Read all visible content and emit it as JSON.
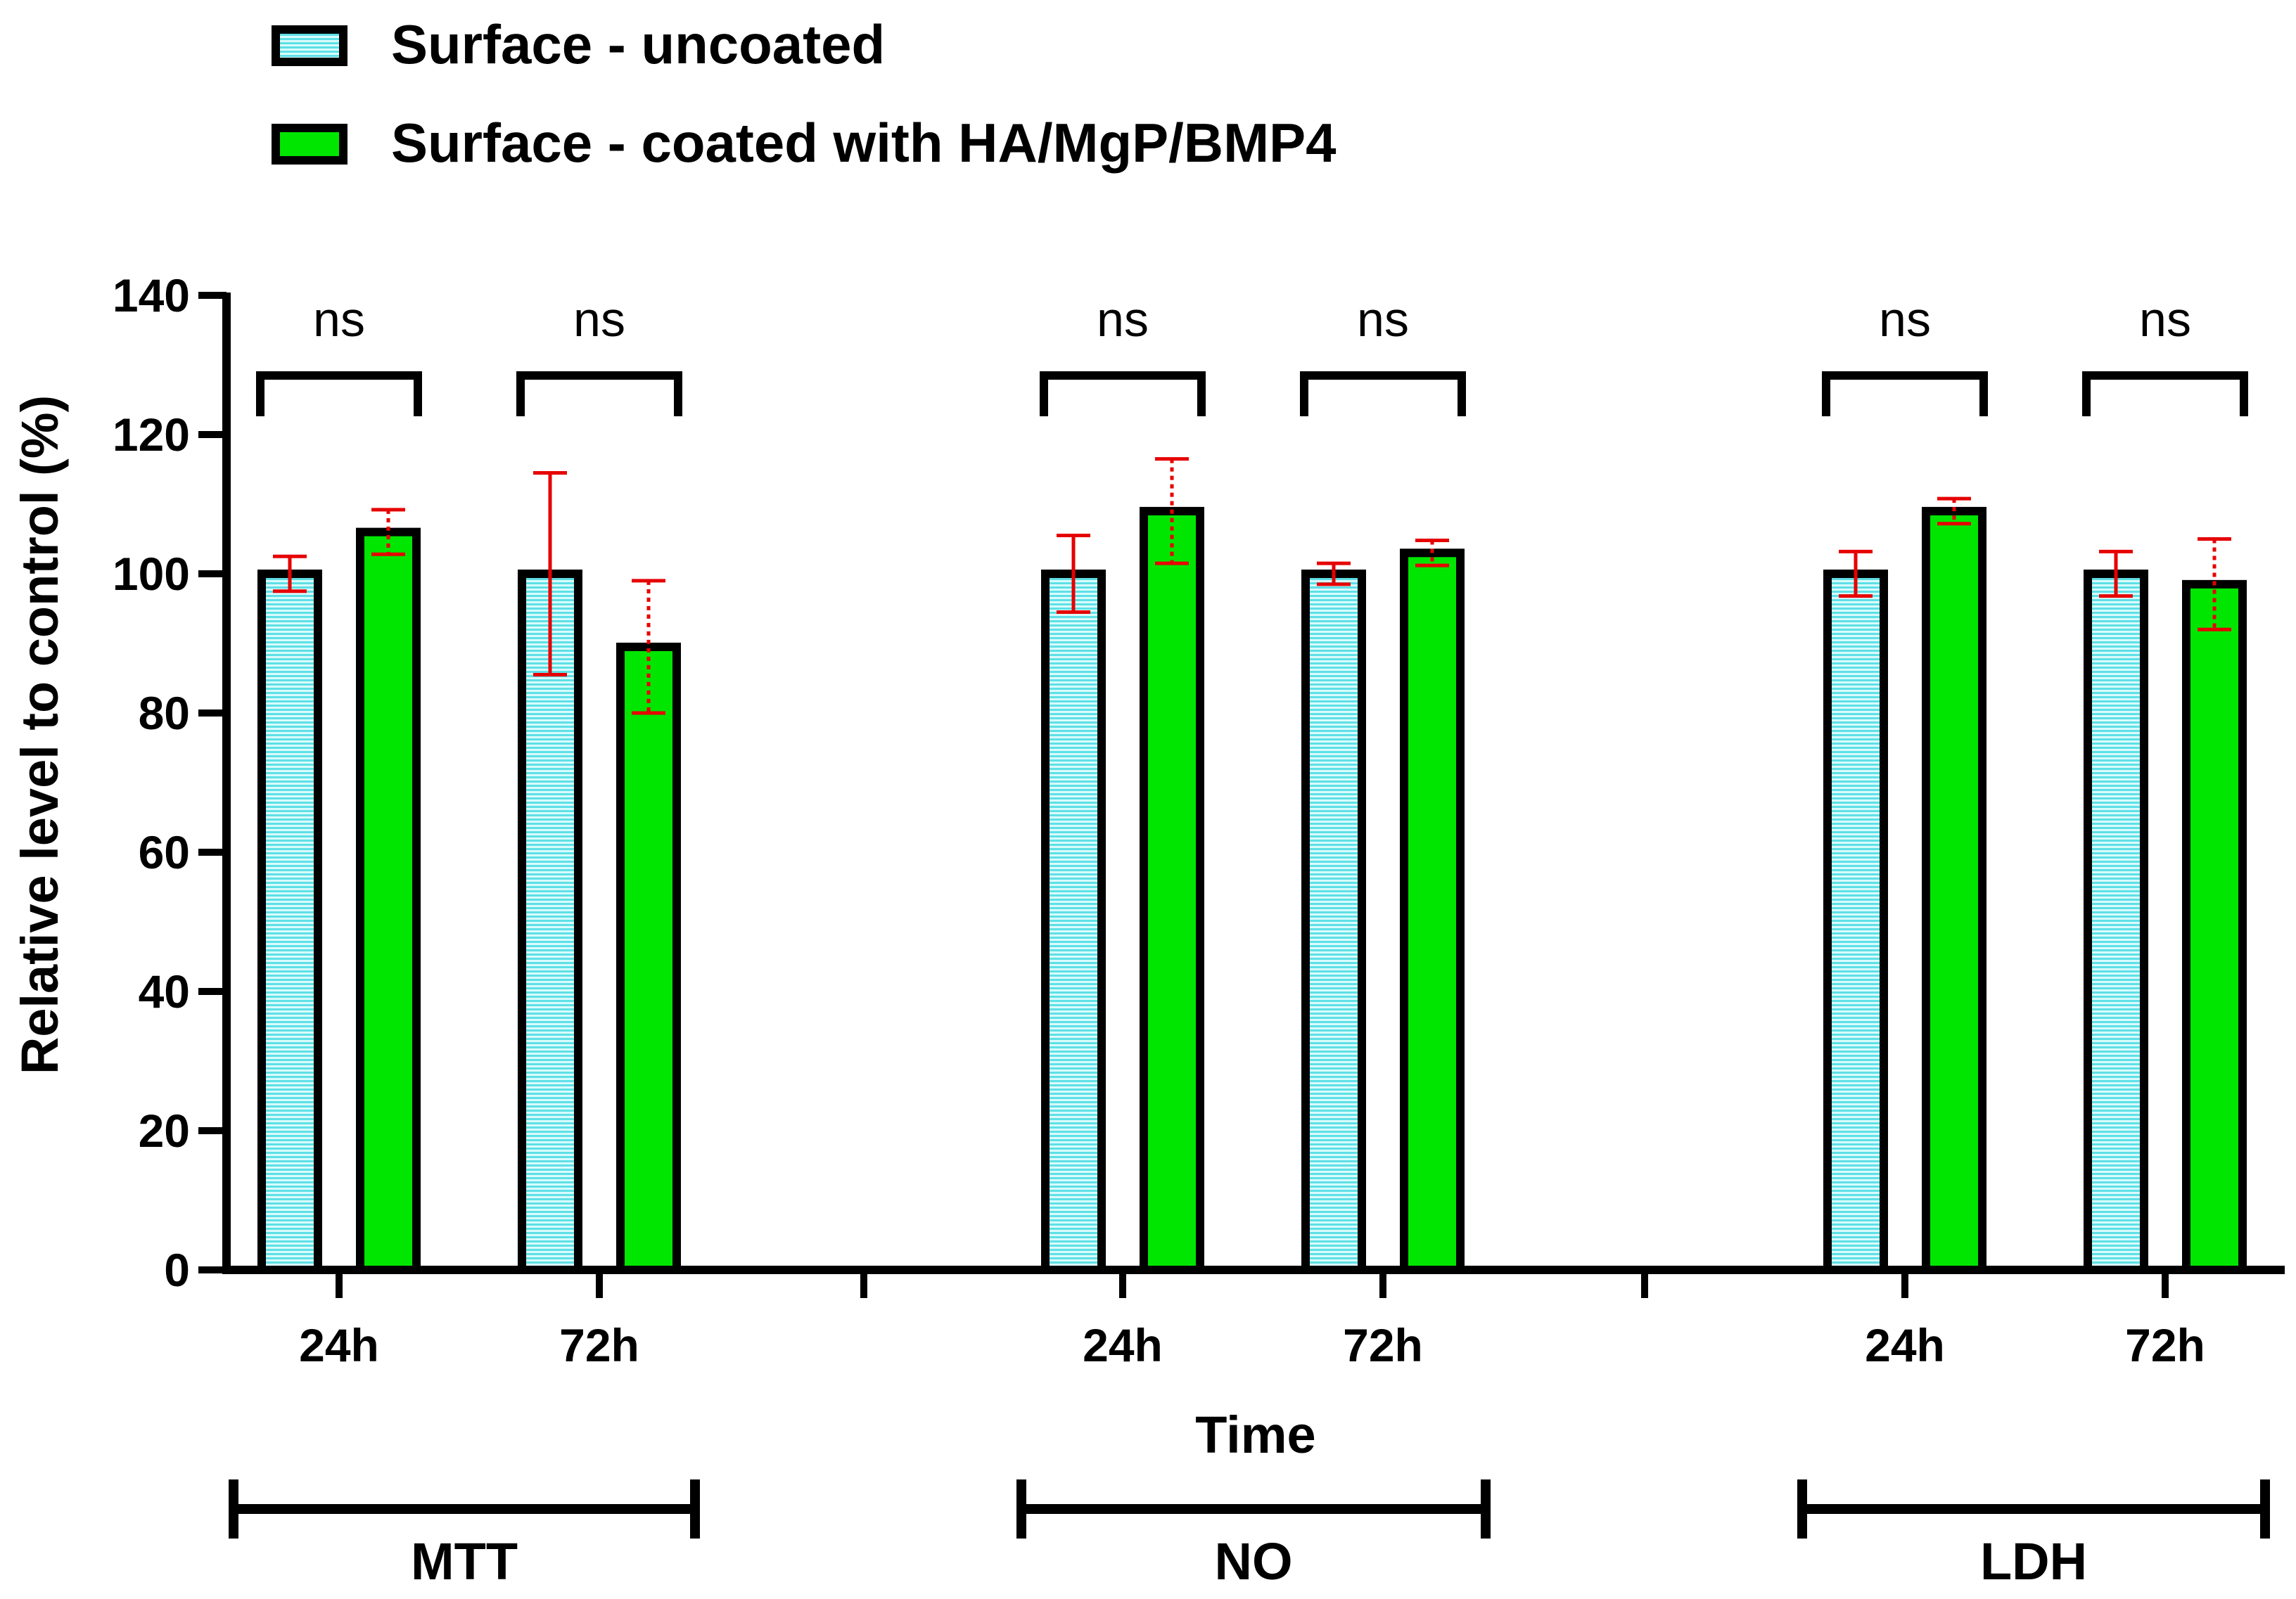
{
  "chart_data": {
    "type": "bar",
    "title": "",
    "xlabel": "Time",
    "ylabel": "Relative level to control (%)",
    "ylim": [
      0,
      140
    ],
    "yticks": [
      0,
      20,
      40,
      60,
      80,
      100,
      120,
      140
    ],
    "grid": false,
    "legend_position": "top-left",
    "groups": [
      {
        "label": "MTT",
        "categories": [
          "24h",
          "72h"
        ]
      },
      {
        "label": "NO",
        "categories": [
          "24h",
          "72h"
        ]
      },
      {
        "label": "LDH",
        "categories": [
          "24h",
          "72h"
        ]
      }
    ],
    "series": [
      {
        "name": "Surface - uncoated",
        "color": "#5ee0e6",
        "pattern": "horizontal-lines",
        "values": [
          100,
          100,
          100,
          100,
          100,
          100
        ],
        "errors": [
          2.5,
          14.5,
          5.5,
          1.5,
          3.2,
          3.2
        ]
      },
      {
        "name": "Surface - coated with HA/MgP/BMP4",
        "color": "#00e600",
        "pattern": "solid",
        "values": [
          106,
          89.5,
          109,
          103,
          109,
          98.5
        ],
        "errors": [
          3.2,
          9.5,
          7.5,
          1.8,
          1.8,
          6.5
        ]
      }
    ],
    "significance": [
      "ns",
      "ns",
      "ns",
      "ns",
      "ns",
      "ns"
    ],
    "error_bar_color": "#e60000"
  }
}
